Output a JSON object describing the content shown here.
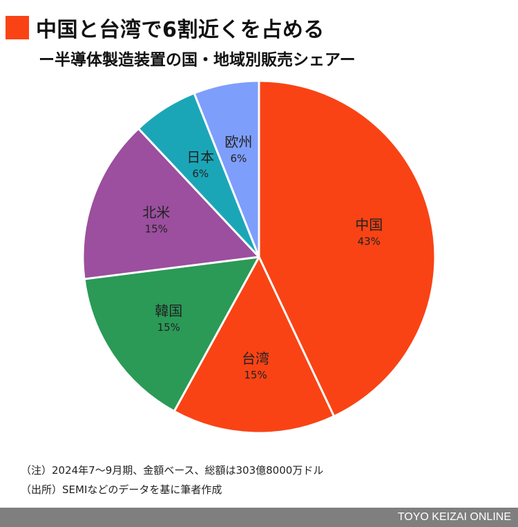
{
  "header": {
    "title": "中国と台湾で6割近くを占める",
    "subtitle": "ー半導体製造装置の国・地域別販売シェアー",
    "accent_color": "#F94315"
  },
  "chart_data": {
    "type": "pie",
    "title": "中国と台湾で6割近くを占める",
    "subtitle": "ー半導体製造装置の国・地域別販売シェアー",
    "start": "12 o'clock, clockwise",
    "slices": [
      {
        "label": "中国",
        "value": 43,
        "display": "43%",
        "color": "#F94315"
      },
      {
        "label": "台湾",
        "value": 15,
        "display": "15%",
        "color": "#F94315"
      },
      {
        "label": "韓国",
        "value": 15,
        "display": "15%",
        "color": "#2A9A56"
      },
      {
        "label": "北米",
        "value": 15,
        "display": "15%",
        "color": "#9B4F9E"
      },
      {
        "label": "日本",
        "value": 6,
        "display": "6%",
        "color": "#1BA6B8"
      },
      {
        "label": "欧州",
        "value": 6,
        "display": "6%",
        "color": "#7E9EFC"
      }
    ]
  },
  "notes": {
    "note1": "（注）2024年7〜9月期、金額ベース、総額は303億8000万ドル",
    "note2": "（出所）SEMIなどのデータを基に筆者作成"
  },
  "footer": {
    "brand": "TOYO KEIZAI ONLINE"
  }
}
